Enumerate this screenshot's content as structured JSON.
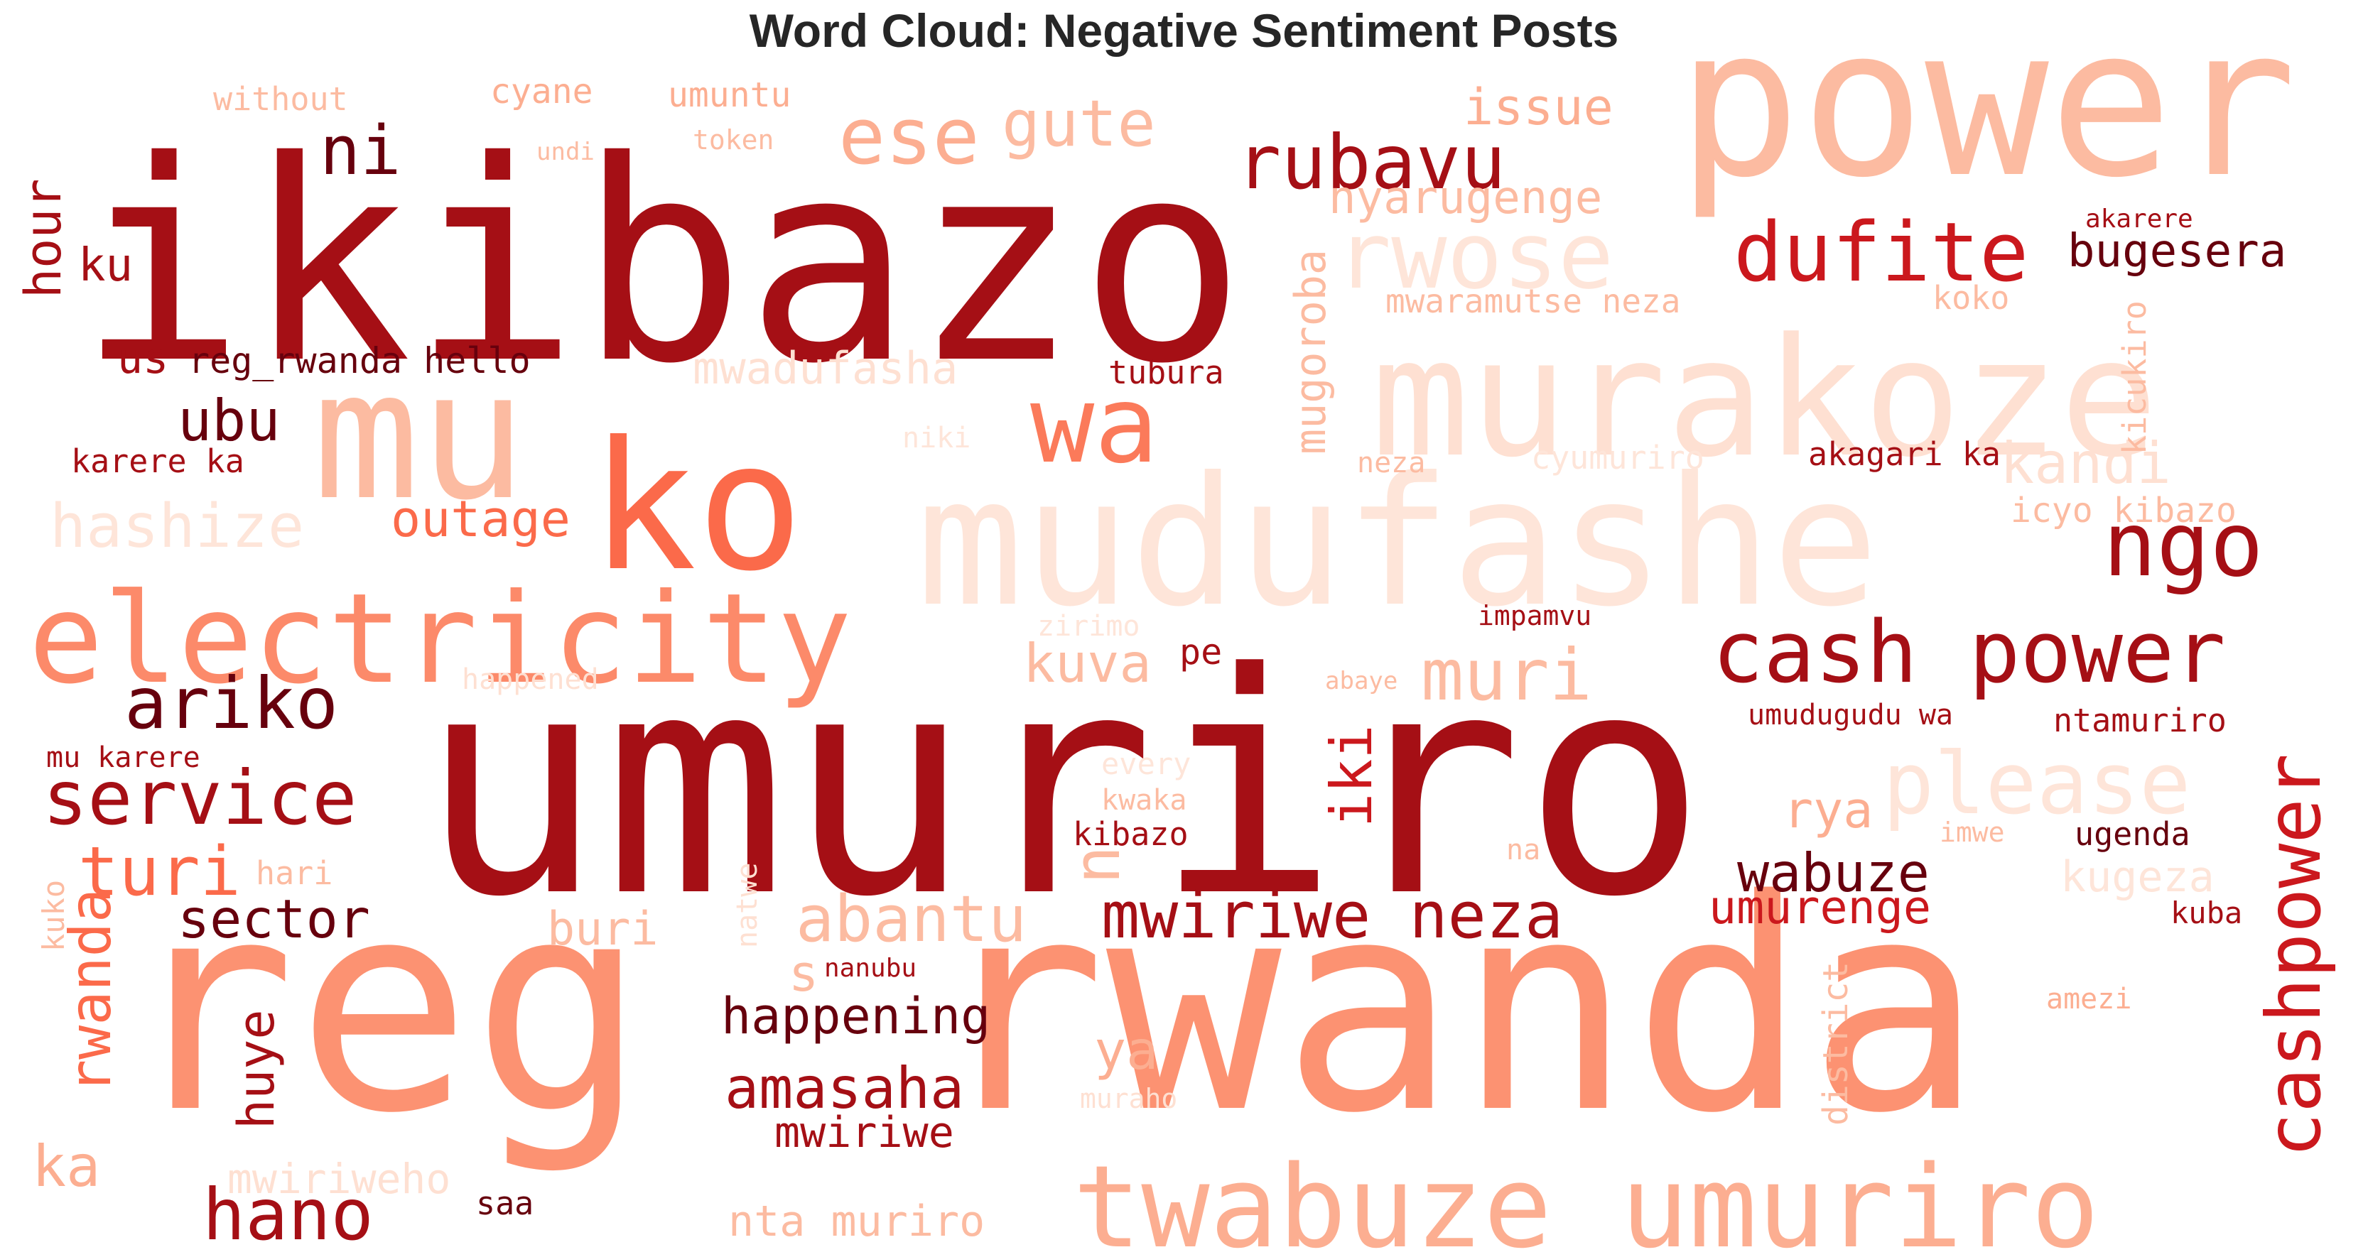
{
  "chart_data": {
    "type": "wordcloud",
    "title": "Word Cloud: Negative Sentiment Posts",
    "colormap": "Reds",
    "words": [
      {
        "text": "umuriro",
        "color": "#a50f15"
      },
      {
        "text": "reg",
        "color": "#fc9272"
      },
      {
        "text": "rwanda",
        "color": "#fc9272"
      },
      {
        "text": "ikibazo",
        "color": "#a50f15"
      },
      {
        "text": "power",
        "color": "#fcbba1"
      },
      {
        "text": "murakoze",
        "color": "#fee0d2"
      },
      {
        "text": "mudufashe",
        "color": "#fee5d9"
      },
      {
        "text": "mu",
        "color": "#fcbba1"
      },
      {
        "text": "ko",
        "color": "#fb6a4a"
      },
      {
        "text": "electricity",
        "color": "#fc8a6a"
      },
      {
        "text": "twabuze umuriro",
        "color": "#fcae91"
      },
      {
        "text": "cash power",
        "color": "#a50f15"
      },
      {
        "text": "dufite",
        "color": "#cb181d"
      },
      {
        "text": "rubavu",
        "color": "#a50f15"
      },
      {
        "text": "ngo",
        "color": "#a50f15"
      },
      {
        "text": "wa",
        "color": "#fb7a5a"
      },
      {
        "text": "rwose",
        "color": "#fee5d9"
      },
      {
        "text": "ese",
        "color": "#fcae91"
      },
      {
        "text": "gute",
        "color": "#fcbba1"
      },
      {
        "text": "ni",
        "color": "#67000d"
      },
      {
        "text": "please",
        "color": "#fee5d9"
      },
      {
        "text": "service",
        "color": "#a50f15"
      },
      {
        "text": "ariko",
        "color": "#67000d"
      },
      {
        "text": "cashpower",
        "color": "#cb181d"
      },
      {
        "text": "muri",
        "color": "#fcbba1"
      },
      {
        "text": "hano",
        "color": "#a50f15"
      },
      {
        "text": "mwiriwe neza",
        "color": "#a50f15"
      },
      {
        "text": "amasaha",
        "color": "#a50f15"
      },
      {
        "text": "hashize",
        "color": "#fee5d9"
      },
      {
        "text": "kandi",
        "color": "#fee0d2"
      },
      {
        "text": "issue",
        "color": "#fcae91"
      },
      {
        "text": "nyarugenge",
        "color": "#fcbba1"
      },
      {
        "text": "bugesera",
        "color": "#67000d"
      },
      {
        "text": "hour",
        "color": "#a50f15"
      },
      {
        "text": "ku",
        "color": "#a50f15"
      },
      {
        "text": "us",
        "color": "#a50f15"
      },
      {
        "text": "reg_rwanda hello",
        "color": "#67000d"
      },
      {
        "text": "ubu",
        "color": "#67000d"
      },
      {
        "text": "karere ka",
        "color": "#a50f15"
      },
      {
        "text": "outage",
        "color": "#fb6a4a"
      },
      {
        "text": "mwadufasha",
        "color": "#fee0d2"
      },
      {
        "text": "mugoroba",
        "color": "#fcbba1"
      },
      {
        "text": "tubura",
        "color": "#a50f15"
      },
      {
        "text": "mwaramutse neza",
        "color": "#fcbba1"
      },
      {
        "text": "koko",
        "color": "#fcbba1"
      },
      {
        "text": "kicukiro",
        "color": "#fcbba1"
      },
      {
        "text": "akarere",
        "color": "#a50f15"
      },
      {
        "text": "akagari ka",
        "color": "#a50f15"
      },
      {
        "text": "icyo kibazo",
        "color": "#fcbba1"
      },
      {
        "text": "cyumuriro",
        "color": "#fee5d9"
      },
      {
        "text": "neza",
        "color": "#fcbba1"
      },
      {
        "text": "niki",
        "color": "#fee5d9"
      },
      {
        "text": "turi",
        "color": "#fb6a4a"
      },
      {
        "text": "sector",
        "color": "#67000d"
      },
      {
        "text": "rwanda",
        "color": "#fb6a4a"
      },
      {
        "text": "huye",
        "color": "#a50f15"
      },
      {
        "text": "ka",
        "color": "#fcae91"
      },
      {
        "text": "kuva",
        "color": "#fcbba1"
      },
      {
        "text": "pe",
        "color": "#a50f15"
      },
      {
        "text": "iki",
        "color": "#cb181d"
      },
      {
        "text": "rya",
        "color": "#fcae91"
      },
      {
        "text": "wabuze",
        "color": "#67000d"
      },
      {
        "text": "umurenge",
        "color": "#cb181d"
      },
      {
        "text": "abantu",
        "color": "#fcbba1"
      },
      {
        "text": "buri",
        "color": "#fcbba1"
      },
      {
        "text": "happening",
        "color": "#67000d"
      },
      {
        "text": "ya",
        "color": "#fcae91"
      },
      {
        "text": "mwiriwe",
        "color": "#a50f15"
      },
      {
        "text": "mwiriweho",
        "color": "#fee0d2"
      },
      {
        "text": "nta muriro",
        "color": "#fcbba1"
      },
      {
        "text": "saa",
        "color": "#67000d"
      },
      {
        "text": "without",
        "color": "#fcbba1"
      },
      {
        "text": "cyane",
        "color": "#fcae91"
      },
      {
        "text": "umuntu",
        "color": "#fcae91"
      },
      {
        "text": "undi",
        "color": "#fcbba1"
      },
      {
        "text": "token",
        "color": "#fcbba1"
      },
      {
        "text": "zirimo",
        "color": "#fee5d9"
      },
      {
        "text": "impamvu",
        "color": "#a50f15"
      },
      {
        "text": "happened",
        "color": "#fee0d2"
      },
      {
        "text": "abaye",
        "color": "#fcbba1"
      },
      {
        "text": "umudugudu wa",
        "color": "#a50f15"
      },
      {
        "text": "ntamuriro",
        "color": "#a50f15"
      },
      {
        "text": "mu karere",
        "color": "#a50f15"
      },
      {
        "text": "every",
        "color": "#fee5d9"
      },
      {
        "text": "kwaka",
        "color": "#fcbba1"
      },
      {
        "text": "kibazo",
        "color": "#a50f15"
      },
      {
        "text": "imwe",
        "color": "#fcbba1"
      },
      {
        "text": "ugenda",
        "color": "#67000d"
      },
      {
        "text": "kugeza",
        "color": "#fee5d9"
      },
      {
        "text": "hari",
        "color": "#fcbba1"
      },
      {
        "text": "kuko",
        "color": "#fcbba1"
      },
      {
        "text": "natwe",
        "color": "#fee0d2"
      },
      {
        "text": "na",
        "color": "#fcbba1"
      },
      {
        "text": "nanubu",
        "color": "#a50f15"
      },
      {
        "text": "kuba",
        "color": "#a50f15"
      },
      {
        "text": "amezi",
        "color": "#fcae91"
      },
      {
        "text": "district",
        "color": "#fcbba1"
      },
      {
        "text": "muraho",
        "color": "#fee0d2"
      },
      {
        "text": "s",
        "color": "#fcbba1"
      },
      {
        "text": "n",
        "color": "#fcbba1"
      }
    ]
  }
}
